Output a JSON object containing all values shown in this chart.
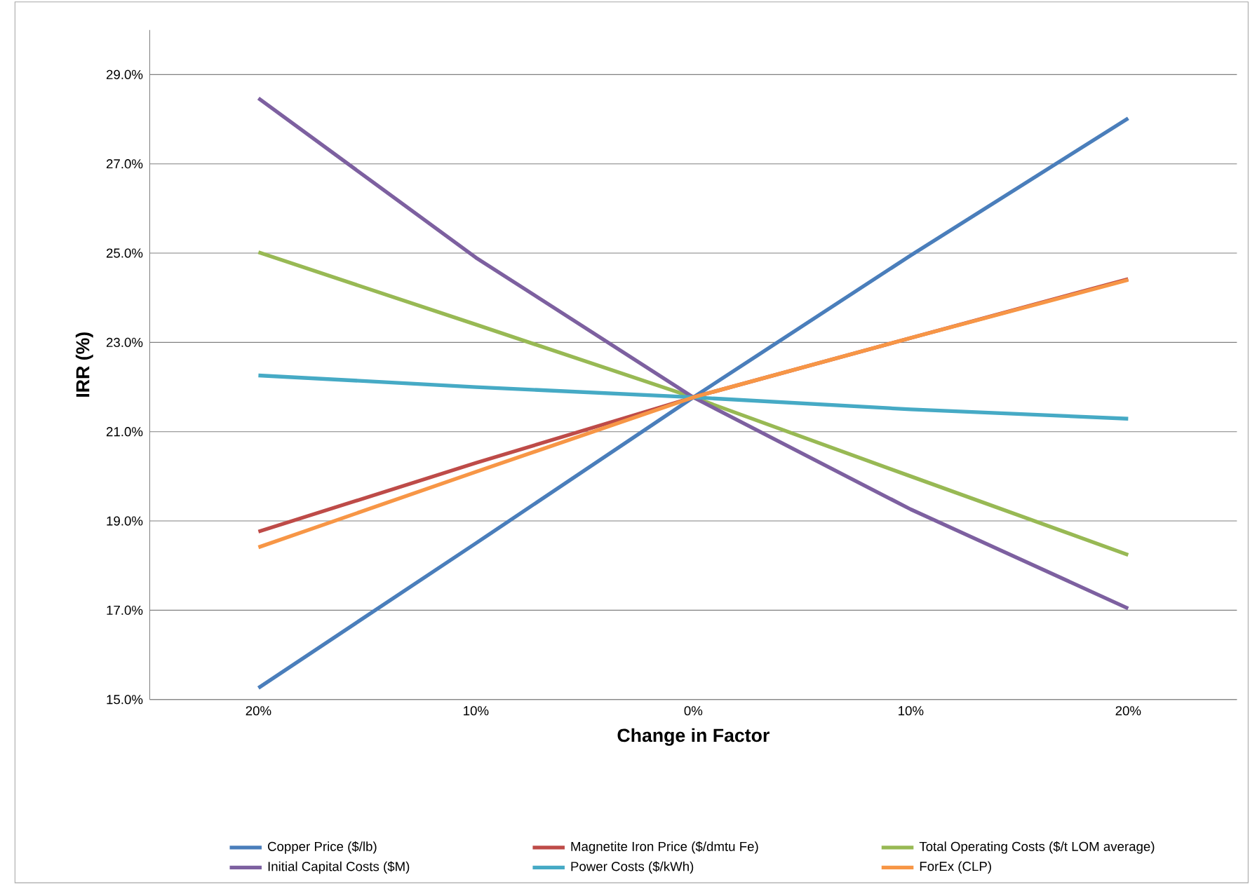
{
  "chart_data": {
    "type": "line",
    "xlabel": "Change in Factor",
    "ylabel": "IRR (%)",
    "categories": [
      "20%",
      "10%",
      "0%",
      "10%",
      "20%"
    ],
    "series": [
      {
        "name": "Copper Price ($/lb)",
        "color": "#4a7ebb",
        "values": [
          15.26,
          18.5,
          21.77,
          24.95,
          28.02
        ]
      },
      {
        "name": "Magnetite Iron Price ($/dmtu Fe)",
        "color": "#be4b48",
        "values": [
          18.76,
          20.3,
          21.77,
          23.1,
          24.42
        ]
      },
      {
        "name": "Total Operating Costs ($/t LOM average)",
        "color": "#98b954",
        "values": [
          25.02,
          23.4,
          21.77,
          20.0,
          18.24
        ]
      },
      {
        "name": "Initial Capital Costs  ($M)",
        "color": "#7d60a0",
        "values": [
          28.47,
          24.9,
          21.77,
          19.26,
          17.04
        ]
      },
      {
        "name": "Power Costs ($/kWh)",
        "color": "#46aac5",
        "values": [
          22.26,
          22.0,
          21.77,
          21.5,
          21.29
        ]
      },
      {
        "name": "ForEx (CLP)",
        "color": "#f79646",
        "values": [
          18.41,
          20.1,
          21.77,
          23.1,
          24.4
        ]
      }
    ],
    "ylim": [
      15,
      30
    ],
    "yticks": [
      {
        "value": 15,
        "label": "15.0%"
      },
      {
        "value": 17,
        "label": "17.0%"
      },
      {
        "value": 19,
        "label": "19.0%"
      },
      {
        "value": 21,
        "label": "21.0%"
      },
      {
        "value": 23,
        "label": "23.0%"
      },
      {
        "value": 25,
        "label": "25.0%"
      },
      {
        "value": 27,
        "label": "27.0%"
      },
      {
        "value": 29,
        "label": "29.0%"
      }
    ],
    "grid": "y",
    "legend": "bottom",
    "marker": "none",
    "line_style": "solid"
  }
}
